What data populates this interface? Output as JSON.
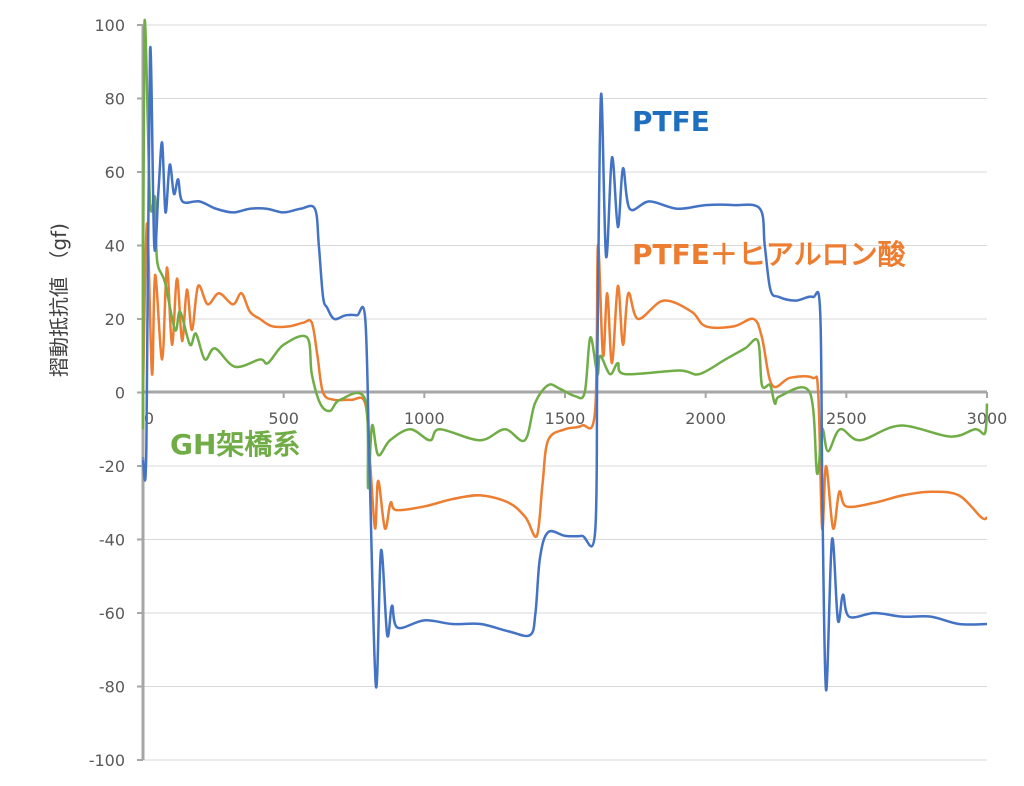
{
  "chart_data": {
    "type": "line",
    "title": "",
    "xlabel": "",
    "ylabel": "摺動抵抗値 （gf)",
    "xlim": [
      0,
      3000
    ],
    "ylim": [
      -100,
      100
    ],
    "xticks": [
      0,
      500,
      1000,
      1500,
      2000,
      2500,
      3000
    ],
    "yticks": [
      -100,
      -80,
      -60,
      -40,
      -20,
      0,
      20,
      40,
      60,
      80,
      100
    ],
    "grid": "horizontal",
    "legend": "none (inline annotations)",
    "series": [
      {
        "name": "PTFE",
        "color": "#4472C4",
        "label_color": "#1F6FBF",
        "points": [
          [
            0,
            -18
          ],
          [
            12,
            -15
          ],
          [
            25,
            93
          ],
          [
            40,
            40
          ],
          [
            55,
            55
          ],
          [
            68,
            68
          ],
          [
            80,
            49
          ],
          [
            95,
            62
          ],
          [
            110,
            54
          ],
          [
            125,
            58
          ],
          [
            140,
            52
          ],
          [
            200,
            52
          ],
          [
            260,
            50
          ],
          [
            320,
            49
          ],
          [
            380,
            50
          ],
          [
            440,
            50
          ],
          [
            500,
            49
          ],
          [
            560,
            50
          ],
          [
            611,
            50
          ],
          [
            625,
            40
          ],
          [
            640,
            26
          ],
          [
            655,
            23
          ],
          [
            680,
            20
          ],
          [
            720,
            21
          ],
          [
            760,
            21
          ],
          [
            790,
            20
          ],
          [
            805,
            -20
          ],
          [
            828,
            -80
          ],
          [
            846,
            -43
          ],
          [
            868,
            -66
          ],
          [
            885,
            -58
          ],
          [
            905,
            -64
          ],
          [
            1000,
            -62
          ],
          [
            1100,
            -63
          ],
          [
            1200,
            -63
          ],
          [
            1300,
            -65
          ],
          [
            1376,
            -66
          ],
          [
            1395,
            -60
          ],
          [
            1411,
            -45
          ],
          [
            1440,
            -38
          ],
          [
            1500,
            -39
          ],
          [
            1560,
            -39
          ],
          [
            1607,
            -38
          ],
          [
            1615,
            10
          ],
          [
            1628,
            81
          ],
          [
            1646,
            37
          ],
          [
            1667,
            64
          ],
          [
            1688,
            45
          ],
          [
            1706,
            61
          ],
          [
            1730,
            50
          ],
          [
            1800,
            52
          ],
          [
            1900,
            50
          ],
          [
            2000,
            51
          ],
          [
            2100,
            51
          ],
          [
            2193,
            50
          ],
          [
            2210,
            40
          ],
          [
            2230,
            28
          ],
          [
            2260,
            26
          ],
          [
            2320,
            25
          ],
          [
            2380,
            26
          ],
          [
            2407,
            22
          ],
          [
            2415,
            -30
          ],
          [
            2428,
            -81
          ],
          [
            2449,
            -40
          ],
          [
            2470,
            -62
          ],
          [
            2488,
            -55
          ],
          [
            2510,
            -61
          ],
          [
            2600,
            -60
          ],
          [
            2700,
            -61
          ],
          [
            2800,
            -61
          ],
          [
            2900,
            -63
          ],
          [
            3000,
            -63
          ]
        ]
      },
      {
        "name": "PTFE＋ヒアルロン酸",
        "color": "#ED7D31",
        "label_color": "#ED7D31",
        "points": [
          [
            0,
            0
          ],
          [
            14,
            46
          ],
          [
            32,
            5
          ],
          [
            43,
            32
          ],
          [
            68,
            9
          ],
          [
            85,
            34
          ],
          [
            103,
            13
          ],
          [
            121,
            31
          ],
          [
            139,
            14
          ],
          [
            156,
            28
          ],
          [
            174,
            17
          ],
          [
            196,
            29
          ],
          [
            230,
            24
          ],
          [
            270,
            27
          ],
          [
            320,
            24
          ],
          [
            350,
            27
          ],
          [
            380,
            22
          ],
          [
            416,
            20
          ],
          [
            460,
            18
          ],
          [
            520,
            18
          ],
          [
            570,
            19
          ],
          [
            600,
            19
          ],
          [
            620,
            10
          ],
          [
            640,
            0
          ],
          [
            680,
            -2
          ],
          [
            740,
            -2
          ],
          [
            790,
            -3
          ],
          [
            808,
            -20
          ],
          [
            825,
            -37
          ],
          [
            836,
            -24
          ],
          [
            860,
            -37
          ],
          [
            880,
            -30
          ],
          [
            900,
            -32
          ],
          [
            1000,
            -31
          ],
          [
            1100,
            -29
          ],
          [
            1200,
            -28
          ],
          [
            1300,
            -30
          ],
          [
            1360,
            -34
          ],
          [
            1400,
            -39
          ],
          [
            1420,
            -25
          ],
          [
            1440,
            -13
          ],
          [
            1500,
            -10
          ],
          [
            1560,
            -9
          ],
          [
            1607,
            -5
          ],
          [
            1617,
            40
          ],
          [
            1635,
            10
          ],
          [
            1650,
            27
          ],
          [
            1667,
            8
          ],
          [
            1688,
            29
          ],
          [
            1706,
            13
          ],
          [
            1725,
            27
          ],
          [
            1760,
            20
          ],
          [
            1850,
            25
          ],
          [
            1950,
            22
          ],
          [
            2000,
            18
          ],
          [
            2100,
            18
          ],
          [
            2170,
            20
          ],
          [
            2200,
            15
          ],
          [
            2236,
            2
          ],
          [
            2300,
            4
          ],
          [
            2380,
            4
          ],
          [
            2400,
            0
          ],
          [
            2414,
            -37
          ],
          [
            2428,
            -20
          ],
          [
            2453,
            -37
          ],
          [
            2475,
            -27
          ],
          [
            2500,
            -31
          ],
          [
            2600,
            -30
          ],
          [
            2700,
            -28
          ],
          [
            2800,
            -27
          ],
          [
            2900,
            -28
          ],
          [
            2980,
            -34
          ],
          [
            3000,
            -34
          ]
        ]
      },
      {
        "name": "GH架橋系",
        "color": "#70AD47",
        "label_color": "#70AD47",
        "points": [
          [
            0,
            -10
          ],
          [
            5,
            100
          ],
          [
            25,
            52
          ],
          [
            43,
            53
          ],
          [
            50,
            36
          ],
          [
            78,
            30
          ],
          [
            114,
            17
          ],
          [
            132,
            22
          ],
          [
            167,
            13
          ],
          [
            188,
            16
          ],
          [
            220,
            9
          ],
          [
            256,
            12
          ],
          [
            327,
            7
          ],
          [
            416,
            9
          ],
          [
            444,
            8
          ],
          [
            500,
            13
          ],
          [
            583,
            15
          ],
          [
            600,
            5
          ],
          [
            630,
            -3
          ],
          [
            665,
            -5
          ],
          [
            700,
            -2
          ],
          [
            790,
            -2
          ],
          [
            800,
            -26
          ],
          [
            814,
            -9
          ],
          [
            836,
            -17
          ],
          [
            878,
            -13
          ],
          [
            950,
            -10
          ],
          [
            1020,
            -13
          ],
          [
            1055,
            -10
          ],
          [
            1197,
            -13
          ],
          [
            1286,
            -10
          ],
          [
            1357,
            -13
          ],
          [
            1393,
            -3
          ],
          [
            1440,
            2
          ],
          [
            1482,
            1
          ],
          [
            1536,
            -1
          ],
          [
            1570,
            0
          ],
          [
            1590,
            15
          ],
          [
            1615,
            5
          ],
          [
            1625,
            10
          ],
          [
            1660,
            5
          ],
          [
            1688,
            8
          ],
          [
            1713,
            5
          ],
          [
            1906,
            6
          ],
          [
            1977,
            5
          ],
          [
            2070,
            9
          ],
          [
            2140,
            12
          ],
          [
            2186,
            14
          ],
          [
            2200,
            2
          ],
          [
            2229,
            2
          ],
          [
            2246,
            -3
          ],
          [
            2264,
            -1
          ],
          [
            2370,
            0
          ],
          [
            2396,
            -22
          ],
          [
            2414,
            -10
          ],
          [
            2435,
            -16
          ],
          [
            2478,
            -10
          ],
          [
            2549,
            -13
          ],
          [
            2691,
            -9
          ],
          [
            2869,
            -12
          ],
          [
            2958,
            -10
          ],
          [
            2993,
            -11
          ],
          [
            3000,
            -3
          ]
        ]
      }
    ],
    "annotations": [
      {
        "text": "PTFE",
        "series": "PTFE"
      },
      {
        "text": "PTFE＋ヒアルロン酸",
        "series": "PTFE＋ヒアルロン酸"
      },
      {
        "text": "GH架橋系",
        "series": "GH架橋系"
      }
    ]
  }
}
